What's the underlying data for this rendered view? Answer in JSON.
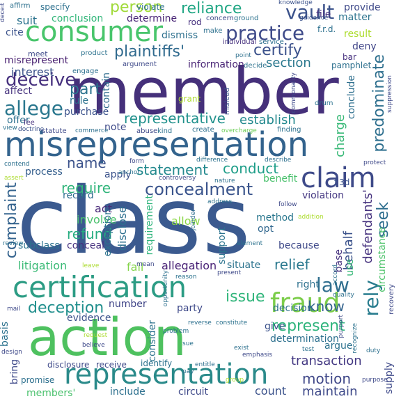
{
  "words": [
    {
      "text": "class",
      "color": "#3b5a8f"
    },
    {
      "text": "member",
      "color": "#45307a"
    },
    {
      "text": "action",
      "color": "#4ec15f"
    },
    {
      "text": "misrepresentation",
      "color": "#33638d"
    },
    {
      "text": "certification",
      "color": "#2c9c84"
    },
    {
      "text": "representation",
      "color": "#2a8a8a"
    },
    {
      "text": "consumer",
      "color": "#48c56b"
    },
    {
      "text": "fraud",
      "color": "#7ccd4a"
    },
    {
      "text": "claim",
      "color": "#3e4a89"
    },
    {
      "text": "practice",
      "color": "#3e4a89"
    },
    {
      "text": "concealment",
      "color": "#3a548c"
    },
    {
      "text": "law",
      "color": "#2f6e8e"
    },
    {
      "text": "represent",
      "color": "#2fb47c"
    },
    {
      "text": "deceive",
      "color": "#46307e"
    },
    {
      "text": "vault",
      "color": "#3b528b"
    },
    {
      "text": "allege",
      "color": "#2a778e"
    },
    {
      "text": "plaintiffs'",
      "color": "#306a8e"
    },
    {
      "text": "reliance",
      "color": "#22a785"
    },
    {
      "text": "person",
      "color": "#a0da39"
    },
    {
      "text": "certify",
      "color": "#3b518b"
    },
    {
      "text": "deception",
      "color": "#218f8d"
    },
    {
      "text": "representative",
      "color": "#21918c"
    },
    {
      "text": "statement",
      "color": "#23898e"
    },
    {
      "text": "conduct",
      "color": "#1f9e89"
    },
    {
      "text": "transaction",
      "color": "#443983"
    },
    {
      "text": "motion",
      "color": "#3f4788"
    },
    {
      "text": "maintain",
      "color": "#3e4989"
    },
    {
      "text": "issue",
      "color": "#31b57b"
    },
    {
      "text": "part",
      "color": "#2c738e"
    },
    {
      "text": "predominate",
      "color": "#2e6f8e"
    },
    {
      "text": "defendants'",
      "color": "#46327e"
    },
    {
      "text": "require",
      "color": "#31b57b"
    },
    {
      "text": "refund",
      "color": "#27ad81"
    },
    {
      "text": "complaint",
      "color": "#33628d"
    },
    {
      "text": "name",
      "color": "#3b528b"
    },
    {
      "text": "relief",
      "color": "#2a788e"
    },
    {
      "text": "seek",
      "color": "#2e6e8e"
    },
    {
      "text": "rely",
      "color": "#287c8e"
    },
    {
      "text": "litigation",
      "color": "#3aba76"
    },
    {
      "text": "know",
      "color": "#33638d"
    },
    {
      "text": "establish",
      "color": "#23898e"
    },
    {
      "text": "behalf",
      "color": "#3b528b"
    },
    {
      "text": "charge",
      "color": "#38b977"
    },
    {
      "text": "information",
      "color": "#482475"
    },
    {
      "text": "section",
      "color": "#2a788e"
    },
    {
      "text": "interest",
      "color": "#3b528b"
    },
    {
      "text": "allegation",
      "color": "#4a2377"
    },
    {
      "text": "misrepresent",
      "color": "#481f70"
    },
    {
      "text": "suit",
      "color": "#2c738e"
    },
    {
      "text": "cite",
      "color": "#3b528b"
    },
    {
      "text": "determine",
      "color": "#482475"
    },
    {
      "text": "conclusion",
      "color": "#32b67a"
    },
    {
      "text": "dismiss",
      "color": "#2d708e"
    },
    {
      "text": "matter",
      "color": "#2c738e"
    },
    {
      "text": "provide",
      "color": "#3e4989"
    },
    {
      "text": "file",
      "color": "#46307e"
    },
    {
      "text": "result",
      "color": "#addc30"
    },
    {
      "text": "deny",
      "color": "#404588"
    },
    {
      "text": "note",
      "color": "#3e4a89"
    },
    {
      "text": "offer",
      "color": "#2d708e"
    },
    {
      "text": "affect",
      "color": "#46327e"
    },
    {
      "text": "rule",
      "color": "#2c728e"
    },
    {
      "text": "purchase",
      "color": "#3b528b"
    },
    {
      "text": "contain",
      "color": "#2f6c8e"
    },
    {
      "text": "conclude",
      "color": "#2e6f8e"
    },
    {
      "text": "process",
      "color": "#355f8d"
    },
    {
      "text": "apply",
      "color": "#3b528b"
    },
    {
      "text": "act",
      "color": "#482878"
    },
    {
      "text": "involve",
      "color": "#4ac16d"
    },
    {
      "text": "record",
      "color": "#2e6d8e"
    },
    {
      "text": "violation",
      "color": "#453882"
    },
    {
      "text": "benefit",
      "color": "#4ac16d"
    },
    {
      "text": "allow",
      "color": "#8bd646"
    },
    {
      "text": "method",
      "color": "#2a778e"
    },
    {
      "text": "opt",
      "color": "#31678e"
    },
    {
      "text": "because",
      "color": "#3e4989"
    },
    {
      "text": "support",
      "color": "#2c738e"
    },
    {
      "text": "situate",
      "color": "#2c738e"
    },
    {
      "text": "right",
      "color": "#2d708e"
    },
    {
      "text": "decision",
      "color": "#2d708e"
    },
    {
      "text": "use",
      "color": "#37b878"
    },
    {
      "text": "base",
      "color": "#46327e"
    },
    {
      "text": "circumstance",
      "color": "#4ec36b"
    },
    {
      "text": "subclass",
      "color": "#2c728e"
    },
    {
      "text": "conceal",
      "color": "#46307e"
    },
    {
      "text": "fail",
      "color": "#84d44b"
    },
    {
      "text": "requirement",
      "color": "#2fb47c"
    },
    {
      "text": "disclose",
      "color": "#2d708e"
    },
    {
      "text": "exception",
      "color": "#2c728e"
    },
    {
      "text": "number",
      "color": "#404588"
    },
    {
      "text": "party",
      "color": "#3e4989"
    },
    {
      "text": "evidence",
      "color": "#3b528b"
    },
    {
      "text": "consider",
      "color": "#2c728e"
    },
    {
      "text": "give",
      "color": "#3b528b"
    },
    {
      "text": "argue",
      "color": "#2c728e"
    },
    {
      "text": "determination",
      "color": "#2d708e"
    },
    {
      "text": "bring",
      "color": "#3e4989"
    },
    {
      "text": "members'",
      "color": "#4ac16d"
    },
    {
      "text": "include",
      "color": "#2d708e"
    },
    {
      "text": "circuit",
      "color": "#3e4989"
    },
    {
      "text": "count",
      "color": "#3b528b"
    },
    {
      "text": "receive",
      "color": "#3e4989"
    },
    {
      "text": "identify",
      "color": "#2c728e"
    },
    {
      "text": "disclosure",
      "color": "#3e4989"
    },
    {
      "text": "promise",
      "color": "#2d708e"
    },
    {
      "text": "basis",
      "color": "#2c728e"
    },
    {
      "text": "supply",
      "color": "#3e4989"
    },
    {
      "text": "f.r.d.",
      "color": "#2d708e"
    },
    {
      "text": "f.3d",
      "color": "#3b528b"
    },
    {
      "text": "grant",
      "color": "#addc30"
    },
    {
      "text": "bar",
      "color": "#46307e"
    },
    {
      "text": "pamphlet",
      "color": "#2d708e"
    },
    {
      "text": "knowledge",
      "color": "#3b528b"
    },
    {
      "text": "specify",
      "color": "#2d708e"
    },
    {
      "text": "violate",
      "color": "#2c728e"
    },
    {
      "text": "rod",
      "color": "#46307e"
    },
    {
      "text": "make",
      "color": "#2d708e"
    },
    {
      "text": "concern",
      "color": "#3e4989"
    },
    {
      "text": "ground",
      "color": "#2c728e"
    },
    {
      "text": "guidance",
      "color": "#3b528b"
    },
    {
      "text": "individual",
      "color": "#46307e"
    },
    {
      "text": "service",
      "color": "#2d708e"
    },
    {
      "text": "meet",
      "color": "#3e4989"
    },
    {
      "text": "product",
      "color": "#2c728e"
    },
    {
      "text": "point",
      "color": "#2d708e"
    },
    {
      "text": "argument",
      "color": "#3e4989"
    },
    {
      "text": "decide",
      "color": "#2c728e"
    },
    {
      "text": "engage",
      "color": "#2d708e"
    },
    {
      "text": "commonality",
      "color": "#3e4989"
    },
    {
      "text": "drum",
      "color": "#2c728e"
    },
    {
      "text": "mislead",
      "color": "#3b528b"
    },
    {
      "text": "finding",
      "color": "#2c728e"
    },
    {
      "text": "suppression",
      "color": "#3e4989"
    },
    {
      "text": "create",
      "color": "#2d708e"
    },
    {
      "text": "overcharge",
      "color": "#6ece58"
    },
    {
      "text": "abuse",
      "color": "#3e4989"
    },
    {
      "text": "kind",
      "color": "#2c728e"
    },
    {
      "text": "commerce",
      "color": "#2d708e"
    },
    {
      "text": "statute",
      "color": "#3e4989"
    },
    {
      "text": "fee",
      "color": "#46307e"
    },
    {
      "text": "doctrine",
      "color": "#3b528b"
    },
    {
      "text": "view",
      "color": "#2c728e"
    },
    {
      "text": "contend",
      "color": "#2d708e"
    },
    {
      "text": "form",
      "color": "#3e4989"
    },
    {
      "text": "difference",
      "color": "#2c728e"
    },
    {
      "text": "describe",
      "color": "#2d708e"
    },
    {
      "text": "protect",
      "color": "#3e4989"
    },
    {
      "text": "assert",
      "color": "#addc30"
    },
    {
      "text": "anchor",
      "color": "#2c728e"
    },
    {
      "text": "controversy",
      "color": "#3e4989"
    },
    {
      "text": "nature",
      "color": "#2d708e"
    },
    {
      "text": "address",
      "color": "#2c728e"
    },
    {
      "text": "follow",
      "color": "#3e4989"
    },
    {
      "text": "joinder",
      "color": "#2d708e"
    },
    {
      "text": "addition",
      "color": "#addc30"
    },
    {
      "text": "element",
      "color": "#2c728e"
    },
    {
      "text": "leave",
      "color": "#addc30"
    },
    {
      "text": "mean",
      "color": "#3e4989"
    },
    {
      "text": "opportunity",
      "color": "#2d708e"
    },
    {
      "text": "reason",
      "color": "#2c728e"
    },
    {
      "text": "present",
      "color": "#3e4989"
    },
    {
      "text": "quality",
      "color": "#2d708e"
    },
    {
      "text": "accord",
      "color": "#2c728e"
    },
    {
      "text": "recovery",
      "color": "#3e4989"
    },
    {
      "text": "reverse",
      "color": "#2d708e"
    },
    {
      "text": "constitute",
      "color": "#2c728e"
    },
    {
      "text": "purport",
      "color": "#3e4989"
    },
    {
      "text": "problem",
      "color": "#2d708e"
    },
    {
      "text": "request",
      "color": "#addc30"
    },
    {
      "text": "believe",
      "color": "#3e4989"
    },
    {
      "text": "sue",
      "color": "#2c728e"
    },
    {
      "text": "exist",
      "color": "#2d708e"
    },
    {
      "text": "emphasis",
      "color": "#3e4989"
    },
    {
      "text": "test",
      "color": "#2c728e"
    },
    {
      "text": "entitle",
      "color": "#2d708e"
    },
    {
      "text": "design",
      "color": "#3e4989"
    },
    {
      "text": "pay",
      "color": "#2c728e"
    },
    {
      "text": "group",
      "color": "#addc30"
    },
    {
      "text": "purpose",
      "color": "#3e4989"
    },
    {
      "text": "duty",
      "color": "#2d708e"
    },
    {
      "text": "recognize",
      "color": "#2c728e"
    },
    {
      "text": "deceit",
      "color": "#3e4989"
    },
    {
      "text": "affirm",
      "color": "#2d708e"
    },
    {
      "text": "review",
      "color": "#2c728e"
    },
    {
      "text": "mail",
      "color": "#3e4989"
    }
  ]
}
